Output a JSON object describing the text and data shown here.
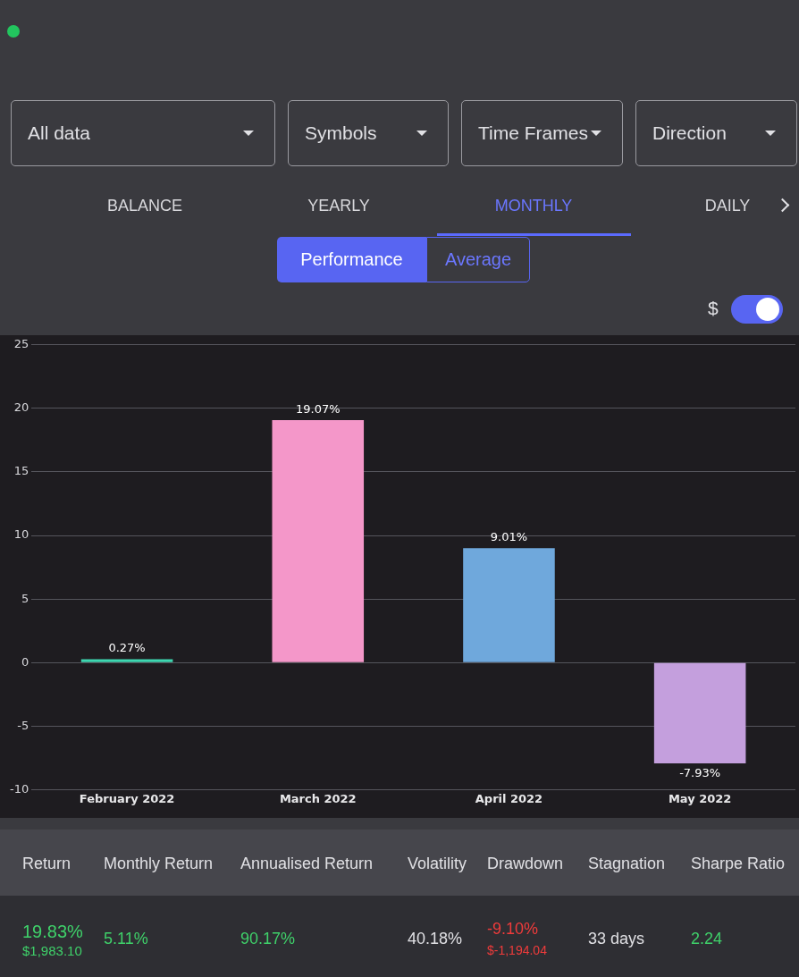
{
  "chart_data": {
    "type": "bar",
    "categories": [
      "February 2022",
      "March 2022",
      "April 2022",
      "May 2022"
    ],
    "values": [
      0.27,
      19.07,
      9.01,
      -7.93
    ],
    "colors": [
      "#3ed6b0",
      "#f497c9",
      "#6fa8dc",
      "#c49fdd"
    ],
    "value_labels": [
      "0.27%",
      "19.07%",
      "9.01%",
      "-7.93%"
    ],
    "ylim": [
      -10,
      25
    ],
    "yticks": [
      -10,
      -5,
      0,
      5,
      10,
      15,
      20,
      25
    ],
    "grid": "y",
    "legend": false,
    "annotations": [
      "All data",
      "Symbols",
      "Time Frames",
      "Direction",
      "BALANCE",
      "YEARLY",
      "MONTHLY",
      "DAILY",
      "Performance",
      "Average",
      "$",
      "Return",
      "Monthly Return",
      "Annualised Return",
      "Volatility",
      "Drawdown",
      "Stagnation",
      "Sharpe Ratio",
      "19.83%",
      "$1,983.10",
      "5.11%",
      "90.17%",
      "40.18%",
      "-9.10%",
      "$-1,194.04",
      "33 days",
      "2.24"
    ]
  }
}
